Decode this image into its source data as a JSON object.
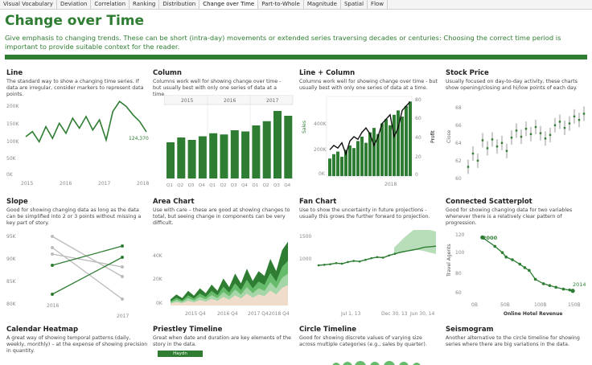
{
  "tabs": [
    {
      "label": "Visual Vocabulary",
      "active": false
    },
    {
      "label": "Deviation",
      "active": false
    },
    {
      "label": "Correlation",
      "active": false
    },
    {
      "label": "Ranking",
      "active": false
    },
    {
      "label": "Distribution",
      "active": false
    },
    {
      "label": "Change over Time",
      "active": true
    },
    {
      "label": "Part-to-Whole",
      "active": false
    },
    {
      "label": "Magnitude",
      "active": false
    },
    {
      "label": "Spatial",
      "active": false
    },
    {
      "label": "Flow",
      "active": false
    }
  ],
  "page": {
    "title": "Change over Time",
    "subtitle": "Give emphasis to changing trends. These can be short (intra-day) movements or extended series traversing decades or centuries: Choosing the correct time period is important to provide suitable context for the reader."
  },
  "colors": {
    "accent": "#2e7d32",
    "mid": "#66bb6a",
    "light": "#a5d6a7",
    "sand": "#f0dccb"
  },
  "cards": {
    "line": {
      "title": "Line",
      "desc": "The standard way to show a changing time series. If data are irregular, consider markers to represent data points.",
      "y_ticks": [
        "200K",
        "150K",
        "100K",
        "50K",
        "0K"
      ],
      "x_ticks": [
        "2015",
        "2016",
        "2017",
        "2018"
      ],
      "end_label": "124,370"
    },
    "column": {
      "title": "Column",
      "desc": "Columns work well for showing change over time - but usually best with only one series of data at a time.",
      "years": [
        "2015",
        "2016",
        "2017"
      ],
      "quarters": [
        "Q1",
        "Q2",
        "Q3",
        "Q4",
        "Q1",
        "Q2",
        "Q3",
        "Q4",
        "Q1",
        "Q2",
        "Q3",
        "Q4"
      ]
    },
    "linecolumn": {
      "title": "Line + Column",
      "desc": "Columns work well for showing change over time - but usually best with only one series of data at a time.",
      "left_ticks": [
        "400K",
        "200K",
        "0K"
      ],
      "right_ticks": [
        "80",
        "60",
        "40",
        "20",
        "0"
      ],
      "left_label": "Sales",
      "right_label": "Profit",
      "x_ticks": [
        "2018"
      ]
    },
    "stock": {
      "title": "Stock Price",
      "desc": "Usually focused on day-to-day activity, these charts show opening/closing and hi/low points of each day.",
      "y_ticks": [
        "68",
        "66",
        "64",
        "62",
        "60"
      ],
      "y_label": "Close"
    },
    "slope": {
      "title": "Slope",
      "desc": "Good for showing changing data as long as the data can be simplified into 2 or 3 points without missing a key part of story.",
      "y_ticks": [
        "95K",
        "90K",
        "85K",
        "80K"
      ],
      "x_ticks": [
        "2016",
        "2017"
      ]
    },
    "area": {
      "title": "Area Chart",
      "desc": "Use with care – these are good at showing changes to total, but seeing change in components can be very difficult.",
      "y_ticks": [
        "40K",
        "20K",
        "0K"
      ],
      "x_ticks": [
        "2015 Q4",
        "2016 Q4",
        "2017 Q4",
        "2018 Q4"
      ]
    },
    "fan": {
      "title": "Fan Chart",
      "desc": "Use to show the uncertainty in future projections - usually this grows the further forward to projection.",
      "y_ticks": [
        "1500",
        "1000"
      ],
      "x_ticks": [
        "Jul 1, 13",
        "Dec 30, 13",
        "Jun 30, 14"
      ]
    },
    "scatter": {
      "title": "Connected Scatterplot",
      "desc": "Good for showing changing data for two variables whenever there is a relatively clear pattern of progression.",
      "y_ticks": [
        "120",
        "100",
        "80",
        "60"
      ],
      "x_ticks": [
        "0B",
        "50B",
        "100B",
        "150B"
      ],
      "y_label": "Travel Agents",
      "x_label": "Online Hotel Revenue",
      "start_label": "2000",
      "end_label": "2014"
    },
    "calendar": {
      "title": "Calendar Heatmap",
      "desc": "A great way of showing temporal patterns (daily, weekly, monthly) – at the expense of showing precision in quantity."
    },
    "priestley": {
      "title": "Priestley Timeline",
      "desc": "Great when date and duration are key elements of the story in the data.",
      "bar_label": "Haydn"
    },
    "circle": {
      "title": "Circle Timeline",
      "desc": "Good for showing discrete values of varying size across multiple categories (e.g., sales by quarter)."
    },
    "seismogram": {
      "title": "Seismogram",
      "desc": "Another alternative to the circle timeline for showing series where there are big variations in the data."
    }
  },
  "chart_data": [
    {
      "type": "line",
      "title": "Line",
      "x": [
        2015,
        2015.17,
        2015.33,
        2015.5,
        2015.67,
        2015.83,
        2016,
        2016.17,
        2016.33,
        2016.5,
        2016.67,
        2016.83,
        2017,
        2017.17,
        2017.33,
        2017.5,
        2017.67,
        2017.83,
        2018
      ],
      "values": [
        110,
        125,
        95,
        140,
        105,
        150,
        120,
        165,
        135,
        170,
        130,
        160,
        100,
        185,
        215,
        200,
        175,
        155,
        124.37
      ],
      "ylim": [
        0,
        220
      ]
    },
    {
      "type": "bar",
      "title": "Column",
      "categories": [
        "Q1",
        "Q2",
        "Q3",
        "Q4",
        "Q1",
        "Q2",
        "Q3",
        "Q4",
        "Q1",
        "Q2",
        "Q3",
        "Q4"
      ],
      "values": [
        60,
        68,
        64,
        70,
        75,
        73,
        80,
        78,
        88,
        95,
        112,
        104
      ],
      "ylim": [
        0,
        120
      ]
    },
    {
      "type": "bar",
      "title": "Line + Column",
      "values": [
        20,
        25,
        28,
        22,
        30,
        35,
        32,
        40,
        45,
        38,
        50,
        55,
        48,
        60,
        65,
        58,
        70,
        75,
        68,
        80,
        85
      ],
      "line_values": [
        30,
        35,
        32,
        38,
        25,
        40,
        45,
        42,
        50,
        55,
        48,
        35,
        45,
        60,
        65,
        70,
        45,
        55,
        75,
        80,
        85
      ],
      "ylim": [
        0,
        90
      ]
    },
    {
      "type": "line",
      "title": "Area Chart",
      "values": [
        5,
        9,
        6,
        12,
        8,
        14,
        10,
        17,
        12,
        22,
        15,
        26,
        18,
        30,
        20,
        28,
        24,
        38,
        28,
        45,
        52
      ],
      "ylim": [
        0,
        55
      ]
    },
    {
      "type": "line",
      "title": "Fan Chart",
      "values": [
        1000,
        1010,
        1020,
        1040,
        1030,
        1060,
        1080,
        1070,
        1100,
        1130,
        1150,
        1140,
        1180,
        1210,
        1240,
        1260,
        1280,
        1300,
        1330,
        1340,
        1350
      ],
      "ylim": [
        700,
        1650
      ]
    },
    {
      "type": "scatter",
      "title": "Connected Scatterplot",
      "x": [
        10,
        30,
        42,
        48,
        58,
        70,
        78,
        85,
        95,
        108,
        118,
        128,
        140,
        150,
        155
      ],
      "values": [
        122,
        112,
        105,
        100,
        97,
        92,
        88,
        85,
        75,
        70,
        68,
        66,
        64,
        63,
        62
      ],
      "ylim": [
        60,
        125
      ],
      "xlim": [
        0,
        160
      ]
    }
  ]
}
